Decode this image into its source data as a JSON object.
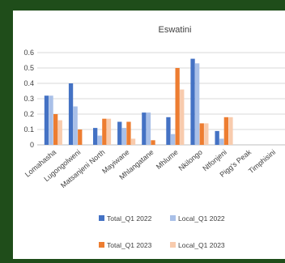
{
  "chart_data": {
    "type": "bar",
    "title": "Eswatini",
    "xlabel": "",
    "ylabel": "",
    "ylim": [
      0,
      0.6
    ],
    "yticks": [
      "0",
      "0.1",
      "0.2",
      "0.3",
      "0.4",
      "0.5",
      "0.6"
    ],
    "grid": true,
    "legend_position": "bottom",
    "categories": [
      "Lomahasha",
      "Lugongolweni",
      "Matsanjeni North",
      "Mayiwane",
      "Mhlangatane",
      "Mhlume",
      "Nkilongo",
      "Ntfonjeni",
      "Pigg's Peak",
      "Timphisini"
    ],
    "series": [
      {
        "name": "Total_Q1 2022",
        "color": "#4472c4",
        "values": [
          0.32,
          0.4,
          0.11,
          0.15,
          0.21,
          0.18,
          0.56,
          0.09,
          0,
          0
        ]
      },
      {
        "name": "Local_Q1 2022",
        "color": "#a9c0e8",
        "values": [
          0.32,
          0.25,
          0.06,
          0.11,
          0.21,
          0.07,
          0.53,
          0.04,
          0,
          0
        ]
      },
      {
        "name": "Total_Q1 2023",
        "color": "#ed7d31",
        "values": [
          0.2,
          0.1,
          0.17,
          0.15,
          0.03,
          0.5,
          0.14,
          0.18,
          0,
          0
        ]
      },
      {
        "name": "Local_Q1 2023",
        "color": "#f8cbad",
        "values": [
          0.16,
          0.0,
          0.17,
          0.04,
          0.0,
          0.36,
          0.14,
          0.18,
          0,
          0
        ]
      }
    ]
  }
}
